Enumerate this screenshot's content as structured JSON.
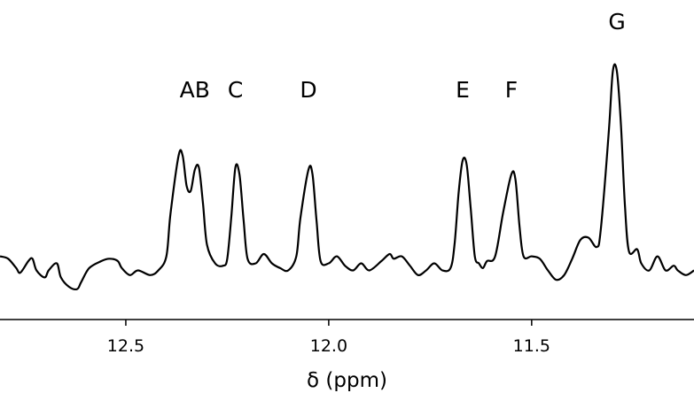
{
  "chart_data": {
    "type": "line",
    "title": "",
    "xlabel": "δ (ppm)",
    "ylabel": "",
    "xlim": [
      12.81,
      11.1
    ],
    "x_reversed": true,
    "ylim": [
      -0.2,
      1.12
    ],
    "grid": false,
    "legend": "none",
    "line_color": "#000000",
    "x_ticks": [
      {
        "value": 12.5,
        "label": "12.5"
      },
      {
        "value": 12.0,
        "label": "12.0"
      },
      {
        "value": 11.5,
        "label": "11.5"
      }
    ],
    "peak_labels": [
      {
        "text": "AB",
        "x": 12.33,
        "y": 0.75
      },
      {
        "text": "C",
        "x": 12.23,
        "y": 0.75
      },
      {
        "text": "D",
        "x": 12.05,
        "y": 0.75
      },
      {
        "text": "E",
        "x": 11.67,
        "y": 0.75
      },
      {
        "text": "F",
        "x": 11.55,
        "y": 0.75
      },
      {
        "text": "G",
        "x": 11.29,
        "y": 1.04
      }
    ],
    "series": [
      {
        "values": [
          [
            12.81,
            0.07
          ],
          [
            12.79,
            0.06
          ],
          [
            12.77,
            0.02
          ],
          [
            12.76,
            0.0
          ],
          [
            12.74,
            0.05
          ],
          [
            12.73,
            0.06
          ],
          [
            12.72,
            0.01
          ],
          [
            12.7,
            -0.02
          ],
          [
            12.69,
            0.01
          ],
          [
            12.67,
            0.04
          ],
          [
            12.66,
            -0.02
          ],
          [
            12.64,
            -0.06
          ],
          [
            12.62,
            -0.07
          ],
          [
            12.61,
            -0.04
          ],
          [
            12.59,
            0.02
          ],
          [
            12.56,
            0.05
          ],
          [
            12.54,
            0.06
          ],
          [
            12.52,
            0.05
          ],
          [
            12.51,
            0.02
          ],
          [
            12.49,
            -0.01
          ],
          [
            12.47,
            0.01
          ],
          [
            12.44,
            -0.01
          ],
          [
            12.42,
            0.01
          ],
          [
            12.4,
            0.07
          ],
          [
            12.39,
            0.25
          ],
          [
            12.37,
            0.5
          ],
          [
            12.36,
            0.5
          ],
          [
            12.35,
            0.37
          ],
          [
            12.34,
            0.35
          ],
          [
            12.33,
            0.44
          ],
          [
            12.32,
            0.45
          ],
          [
            12.31,
            0.3
          ],
          [
            12.3,
            0.12
          ],
          [
            12.28,
            0.04
          ],
          [
            12.26,
            0.03
          ],
          [
            12.25,
            0.06
          ],
          [
            12.24,
            0.24
          ],
          [
            12.23,
            0.45
          ],
          [
            12.22,
            0.42
          ],
          [
            12.21,
            0.23
          ],
          [
            12.2,
            0.06
          ],
          [
            12.18,
            0.04
          ],
          [
            12.16,
            0.08
          ],
          [
            12.14,
            0.04
          ],
          [
            12.12,
            0.02
          ],
          [
            12.1,
            0.01
          ],
          [
            12.08,
            0.07
          ],
          [
            12.07,
            0.23
          ],
          [
            12.05,
            0.44
          ],
          [
            12.04,
            0.42
          ],
          [
            12.03,
            0.22
          ],
          [
            12.02,
            0.05
          ],
          [
            12.0,
            0.04
          ],
          [
            11.98,
            0.07
          ],
          [
            11.96,
            0.03
          ],
          [
            11.94,
            0.01
          ],
          [
            11.92,
            0.04
          ],
          [
            11.9,
            0.01
          ],
          [
            11.87,
            0.05
          ],
          [
            11.85,
            0.08
          ],
          [
            11.84,
            0.06
          ],
          [
            11.82,
            0.07
          ],
          [
            11.8,
            0.03
          ],
          [
            11.78,
            -0.01
          ],
          [
            11.76,
            0.01
          ],
          [
            11.74,
            0.04
          ],
          [
            11.72,
            0.01
          ],
          [
            11.7,
            0.02
          ],
          [
            11.69,
            0.12
          ],
          [
            11.68,
            0.34
          ],
          [
            11.67,
            0.48
          ],
          [
            11.66,
            0.46
          ],
          [
            11.65,
            0.27
          ],
          [
            11.64,
            0.07
          ],
          [
            11.63,
            0.04
          ],
          [
            11.62,
            0.02
          ],
          [
            11.61,
            0.05
          ],
          [
            11.59,
            0.07
          ],
          [
            11.57,
            0.26
          ],
          [
            11.55,
            0.42
          ],
          [
            11.54,
            0.4
          ],
          [
            11.53,
            0.2
          ],
          [
            11.52,
            0.07
          ],
          [
            11.5,
            0.07
          ],
          [
            11.48,
            0.06
          ],
          [
            11.46,
            0.01
          ],
          [
            11.44,
            -0.03
          ],
          [
            11.42,
            -0.01
          ],
          [
            11.4,
            0.06
          ],
          [
            11.38,
            0.14
          ],
          [
            11.36,
            0.15
          ],
          [
            11.34,
            0.11
          ],
          [
            11.33,
            0.18
          ],
          [
            11.31,
            0.6
          ],
          [
            11.3,
            0.86
          ],
          [
            11.29,
            0.86
          ],
          [
            11.28,
            0.63
          ],
          [
            11.27,
            0.28
          ],
          [
            11.26,
            0.09
          ],
          [
            11.24,
            0.1
          ],
          [
            11.23,
            0.04
          ],
          [
            11.21,
            0.01
          ],
          [
            11.19,
            0.07
          ],
          [
            11.17,
            0.01
          ],
          [
            11.15,
            0.03
          ],
          [
            11.14,
            0.01
          ],
          [
            11.12,
            -0.01
          ],
          [
            11.1,
            0.01
          ]
        ]
      }
    ]
  }
}
